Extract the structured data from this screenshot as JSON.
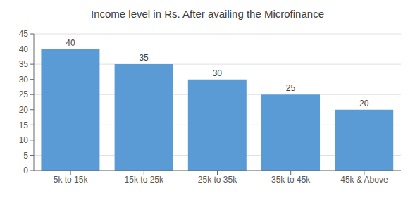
{
  "chart_data": {
    "type": "bar",
    "title": "Income level in Rs. After availing the Microfinance",
    "categories": [
      "5k to 15k",
      "15k to 25k",
      "25k to 35k",
      "35k to 45k",
      "45k & Above"
    ],
    "values": [
      40,
      35,
      30,
      25,
      20
    ],
    "color": "#5B9BD5",
    "ylim": [
      0,
      45
    ],
    "yticks": [
      0,
      5,
      10,
      15,
      20,
      25,
      30,
      35,
      40,
      45
    ],
    "grid": true,
    "data_labels": true
  }
}
